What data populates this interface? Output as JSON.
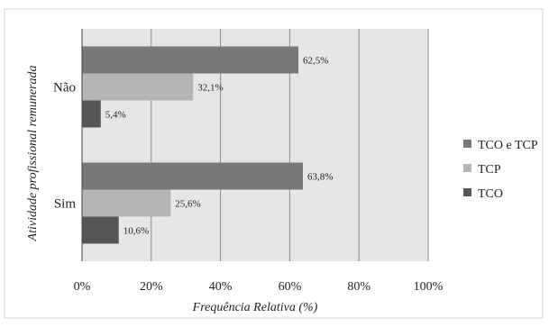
{
  "chart_data": {
    "type": "bar",
    "orientation": "horizontal",
    "title": "",
    "xlabel": "Frequência Relativa (%)",
    "ylabel": "Atividade profissional remunerada",
    "categories": [
      "Não",
      "Sim"
    ],
    "series": [
      {
        "name": "TCO e TCP",
        "values": [
          62.5,
          63.8
        ],
        "labels": [
          "62,5%",
          "63,8%"
        ],
        "color": "#787878"
      },
      {
        "name": "TCP",
        "values": [
          32.1,
          25.6
        ],
        "labels": [
          "32,1%",
          "25,6%"
        ],
        "color": "#b5b5b5"
      },
      {
        "name": "TCO",
        "values": [
          5.4,
          10.6
        ],
        "labels": [
          "5,4%",
          "10,6%"
        ],
        "color": "#555555"
      }
    ],
    "xlim": [
      0,
      100
    ],
    "xticks": [
      0,
      20,
      40,
      60,
      80,
      100
    ],
    "xtick_labels": [
      "0%",
      "20%",
      "40%",
      "60%",
      "80%",
      "100%"
    ],
    "grid": "vertical",
    "plot_background": "#e6e6e6",
    "legend": {
      "placement": "right",
      "order": [
        "TCO e TCP",
        "TCP",
        "TCO"
      ]
    }
  }
}
